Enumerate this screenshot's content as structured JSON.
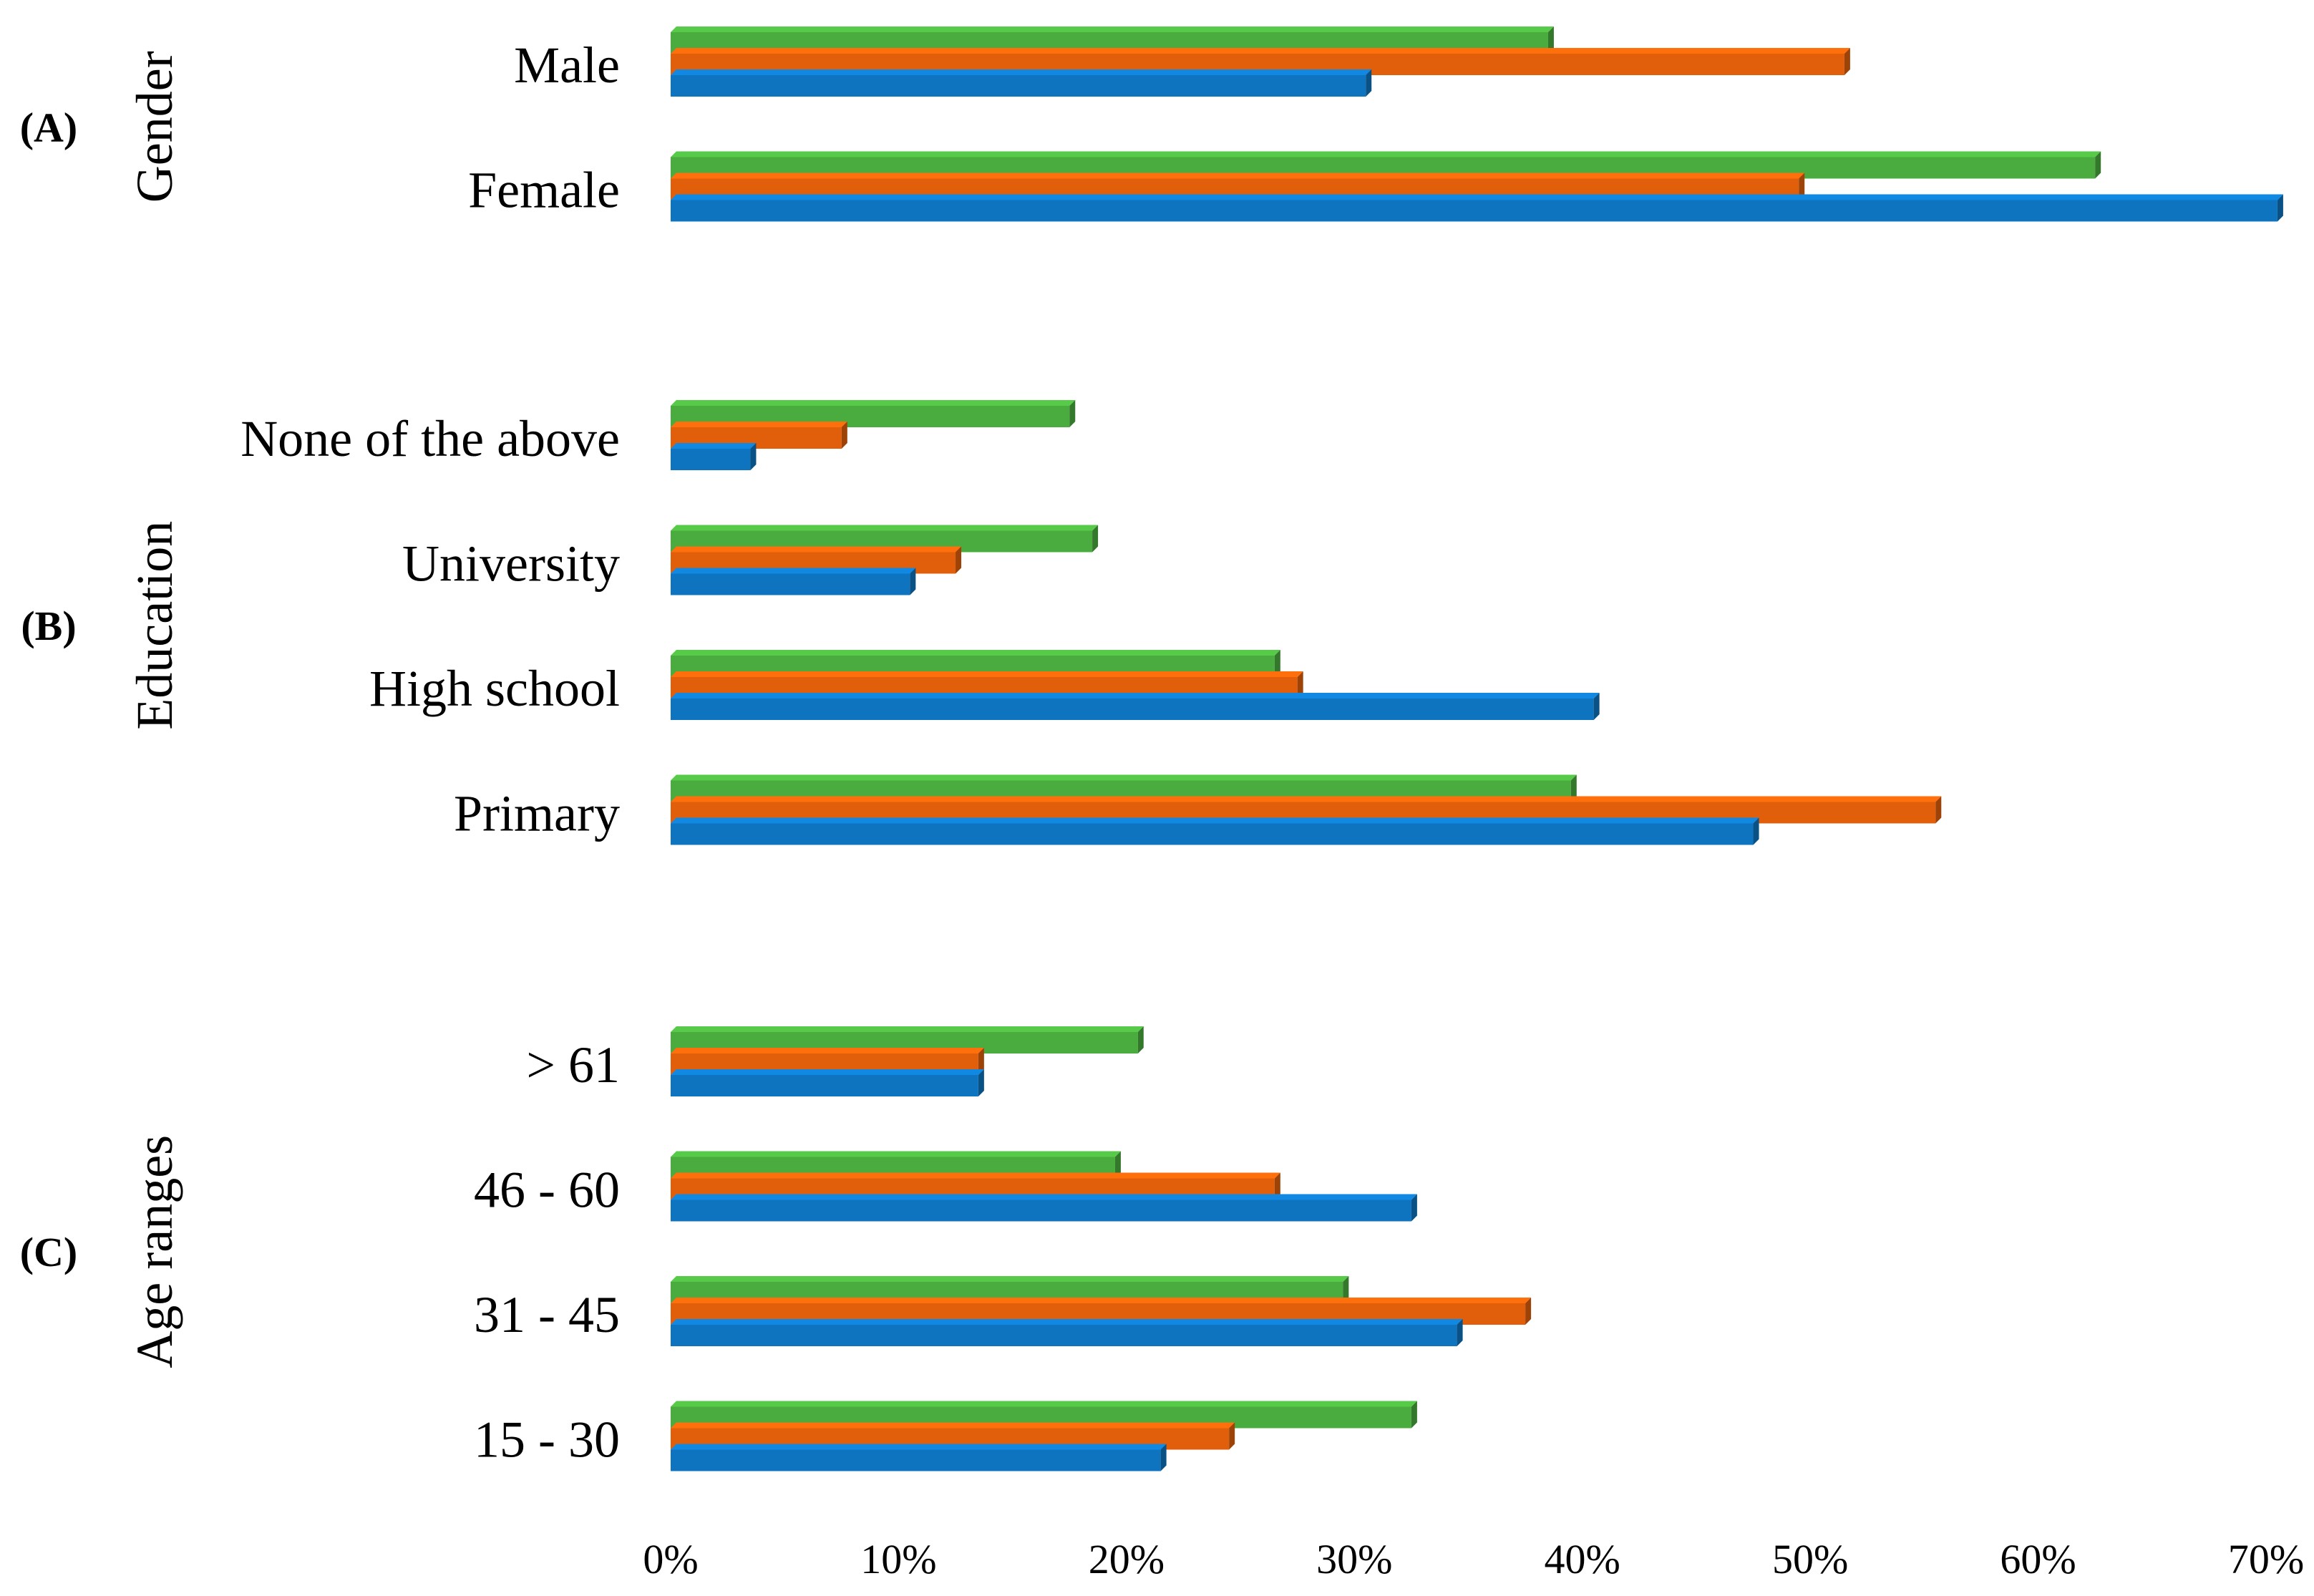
{
  "chart_data": {
    "type": "bar",
    "orientation": "horizontal",
    "title": "",
    "xlabel": "",
    "ylabel": "",
    "xlim": [
      0,
      70
    ],
    "x_ticks": [
      "0%",
      "10%",
      "20%",
      "30%",
      "40%",
      "50%",
      "60%",
      "70%"
    ],
    "grid": false,
    "legend": null,
    "series_colors": [
      "#4aac3e",
      "#e15f0b",
      "#0e74c0"
    ],
    "groups": [
      {
        "tag": "(A)",
        "title": "Gender",
        "categories": [
          {
            "label": "Male",
            "values": [
              38.5,
              51.5,
              30.5
            ]
          },
          {
            "label": "Female",
            "values": [
              62.5,
              49.5,
              70.5
            ]
          }
        ]
      },
      {
        "tag": "(B)",
        "title": "Education",
        "categories": [
          {
            "label": "None of the above",
            "values": [
              17.5,
              7.5,
              3.5
            ]
          },
          {
            "label": "University",
            "values": [
              18.5,
              12.5,
              10.5
            ]
          },
          {
            "label": "High school",
            "values": [
              26.5,
              27.5,
              40.5
            ]
          },
          {
            "label": "Primary",
            "values": [
              39.5,
              55.5,
              47.5
            ]
          }
        ]
      },
      {
        "tag": "(C)",
        "title": "Age ranges",
        "categories": [
          {
            "label": "> 61",
            "values": [
              20.5,
              13.5,
              13.5
            ]
          },
          {
            "label": "46 - 60",
            "values": [
              19.5,
              26.5,
              32.5
            ]
          },
          {
            "label": "31 - 45",
            "values": [
              29.5,
              37.5,
              34.5
            ]
          },
          {
            "label": "15 - 30",
            "values": [
              32.5,
              24.5,
              21.5
            ]
          }
        ]
      }
    ]
  }
}
